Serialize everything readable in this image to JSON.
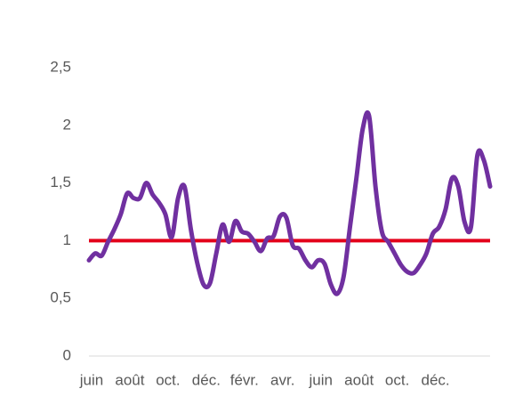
{
  "chart_data": {
    "type": "line",
    "categories": [
      "juin",
      null,
      null,
      null,
      null,
      null,
      "août",
      null,
      null,
      null,
      null,
      null,
      "oct.",
      null,
      null,
      null,
      null,
      null,
      "déc.",
      null,
      null,
      null,
      null,
      null,
      "févr.",
      null,
      null,
      null,
      null,
      null,
      "avr.",
      null,
      null,
      null,
      null,
      null,
      "juin",
      null,
      null,
      null,
      null,
      null,
      "août",
      null,
      null,
      null,
      null,
      null,
      "oct.",
      null,
      null,
      null,
      null,
      null,
      "déc.",
      null,
      null,
      null,
      null,
      null,
      null,
      null,
      null,
      null
    ],
    "series": [
      {
        "color": "#7030a0",
        "values": [
          0.83,
          0.89,
          0.87,
          0.99,
          1.1,
          1.23,
          1.41,
          1.37,
          1.37,
          1.5,
          1.4,
          1.33,
          1.23,
          1.03,
          1.37,
          1.47,
          1.1,
          0.81,
          0.62,
          0.63,
          0.89,
          1.14,
          0.99,
          1.17,
          1.08,
          1.06,
          0.99,
          0.91,
          1.02,
          1.04,
          1.21,
          1.2,
          0.96,
          0.93,
          0.83,
          0.77,
          0.83,
          0.8,
          0.62,
          0.54,
          0.69,
          1.12,
          1.54,
          1.97,
          2.08,
          1.47,
          1.08,
          0.99,
          0.89,
          0.79,
          0.73,
          0.72,
          0.79,
          0.89,
          1.06,
          1.12,
          1.27,
          1.54,
          1.47,
          1.16,
          1.12,
          1.74,
          1.7,
          1.47
        ]
      }
    ],
    "reference_line": {
      "value": 1,
      "color": "#e3001b"
    },
    "ylim": [
      0,
      2.5
    ],
    "yticks": [
      0,
      {
        "value": 0.5,
        "label": "0,5"
      },
      1,
      {
        "value": 1.5,
        "label": "1,5"
      },
      2,
      {
        "value": 2.5,
        "label": "2,5"
      }
    ],
    "grid": false
  }
}
